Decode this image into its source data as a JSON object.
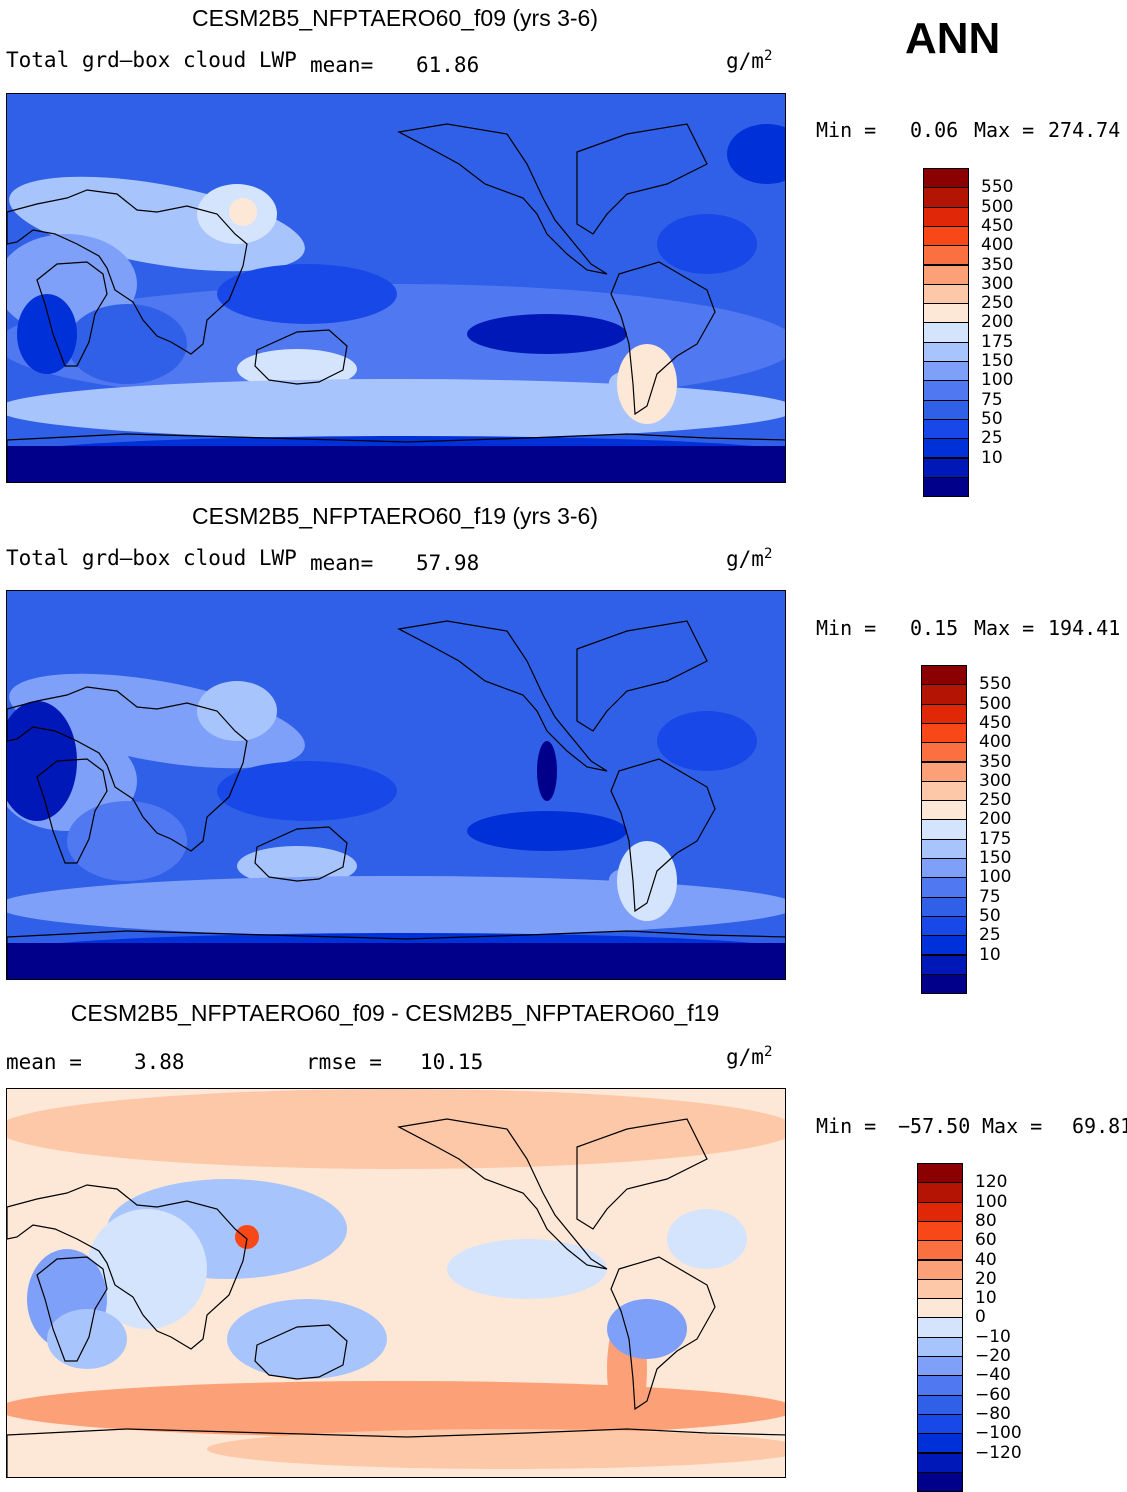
{
  "season": "ANN",
  "panels": [
    {
      "title": "CESM2B5_NFPTAERO60_f09 (yrs 3-6)",
      "variable": "Total grd–box cloud LWP",
      "mean_label": "mean=",
      "mean_value": "61.86",
      "units_base": "g/m",
      "units_exp": "2",
      "min_label": "Min =",
      "min_value": "0.06",
      "max_label": "Max =",
      "max_value": "274.74"
    },
    {
      "title": "CESM2B5_NFPTAERO60_f19 (yrs 3-6)",
      "variable": "Total grd–box cloud LWP",
      "mean_label": "mean=",
      "mean_value": "57.98",
      "units_base": "g/m",
      "units_exp": "2",
      "min_label": "Min =",
      "min_value": "0.15",
      "max_label": "Max =",
      "max_value": "194.41"
    },
    {
      "title": "CESM2B5_NFPTAERO60_f09 - CESM2B5_NFPTAERO60_f19",
      "mean_label": "mean =",
      "mean_value": "3.88",
      "rmse_label": "rmse =",
      "rmse_value": "10.15",
      "units_base": "g/m",
      "units_exp": "2",
      "min_label": "Min =",
      "min_value": "−57.50",
      "max_label": "Max =",
      "max_value": "69.81"
    }
  ],
  "chart_data": [
    {
      "type": "heatmap",
      "title": "CESM2B5_NFPTAERO60_f09 (yrs 3-6)",
      "variable": "Total grd-box cloud LWP",
      "units": "g/m2",
      "mean": 61.86,
      "min": 0.06,
      "max": 274.74,
      "contour_levels": [
        10,
        25,
        50,
        75,
        100,
        150,
        175,
        200,
        250,
        300,
        350,
        400,
        450,
        500,
        550
      ],
      "colorbar_labels": [
        "550",
        "500",
        "450",
        "400",
        "350",
        "300",
        "250",
        "200",
        "175",
        "150",
        "100",
        "75",
        "50",
        "25",
        "10"
      ],
      "colors": [
        "#00008b",
        "#0018b8",
        "#0030d8",
        "#1848e8",
        "#3060e8",
        "#5078f0",
        "#7fa0f8",
        "#a8c4fc",
        "#d4e4fc",
        "#fde8d8",
        "#fdc8a8",
        "#fca078",
        "#fb7040",
        "#f84818",
        "#e02808",
        "#b41404",
        "#8b0000"
      ]
    },
    {
      "type": "heatmap",
      "title": "CESM2B5_NFPTAERO60_f19 (yrs 3-6)",
      "variable": "Total grd-box cloud LWP",
      "units": "g/m2",
      "mean": 57.98,
      "min": 0.15,
      "max": 194.41,
      "contour_levels": [
        10,
        25,
        50,
        75,
        100,
        150,
        175,
        200,
        250,
        300,
        350,
        400,
        450,
        500,
        550
      ],
      "colorbar_labels": [
        "550",
        "500",
        "450",
        "400",
        "350",
        "300",
        "250",
        "200",
        "175",
        "150",
        "100",
        "75",
        "50",
        "25",
        "10"
      ],
      "colors": [
        "#00008b",
        "#0018b8",
        "#0030d8",
        "#1848e8",
        "#3060e8",
        "#5078f0",
        "#7fa0f8",
        "#a8c4fc",
        "#d4e4fc",
        "#fde8d8",
        "#fdc8a8",
        "#fca078",
        "#fb7040",
        "#f84818",
        "#e02808",
        "#b41404",
        "#8b0000"
      ]
    },
    {
      "type": "heatmap",
      "title": "CESM2B5_NFPTAERO60_f09 - CESM2B5_NFPTAERO60_f19",
      "units": "g/m2",
      "mean": 3.88,
      "rmse": 10.15,
      "min": -57.5,
      "max": 69.81,
      "contour_levels": [
        -120,
        -100,
        -80,
        -60,
        -40,
        -20,
        -10,
        0,
        10,
        20,
        40,
        60,
        80,
        100,
        120
      ],
      "colorbar_labels": [
        "120",
        "100",
        "80",
        "60",
        "40",
        "20",
        "10",
        "0",
        "−10",
        "−20",
        "−40",
        "−60",
        "−80",
        "−100",
        "−120"
      ],
      "colors": [
        "#00008b",
        "#0018b8",
        "#0030d8",
        "#1848e8",
        "#3060e8",
        "#5078f0",
        "#7fa0f8",
        "#a8c4fc",
        "#d4e4fc",
        "#fde8d8",
        "#fdc8a8",
        "#fca078",
        "#fb7040",
        "#f84818",
        "#e02808",
        "#b41404",
        "#8b0000"
      ]
    }
  ]
}
